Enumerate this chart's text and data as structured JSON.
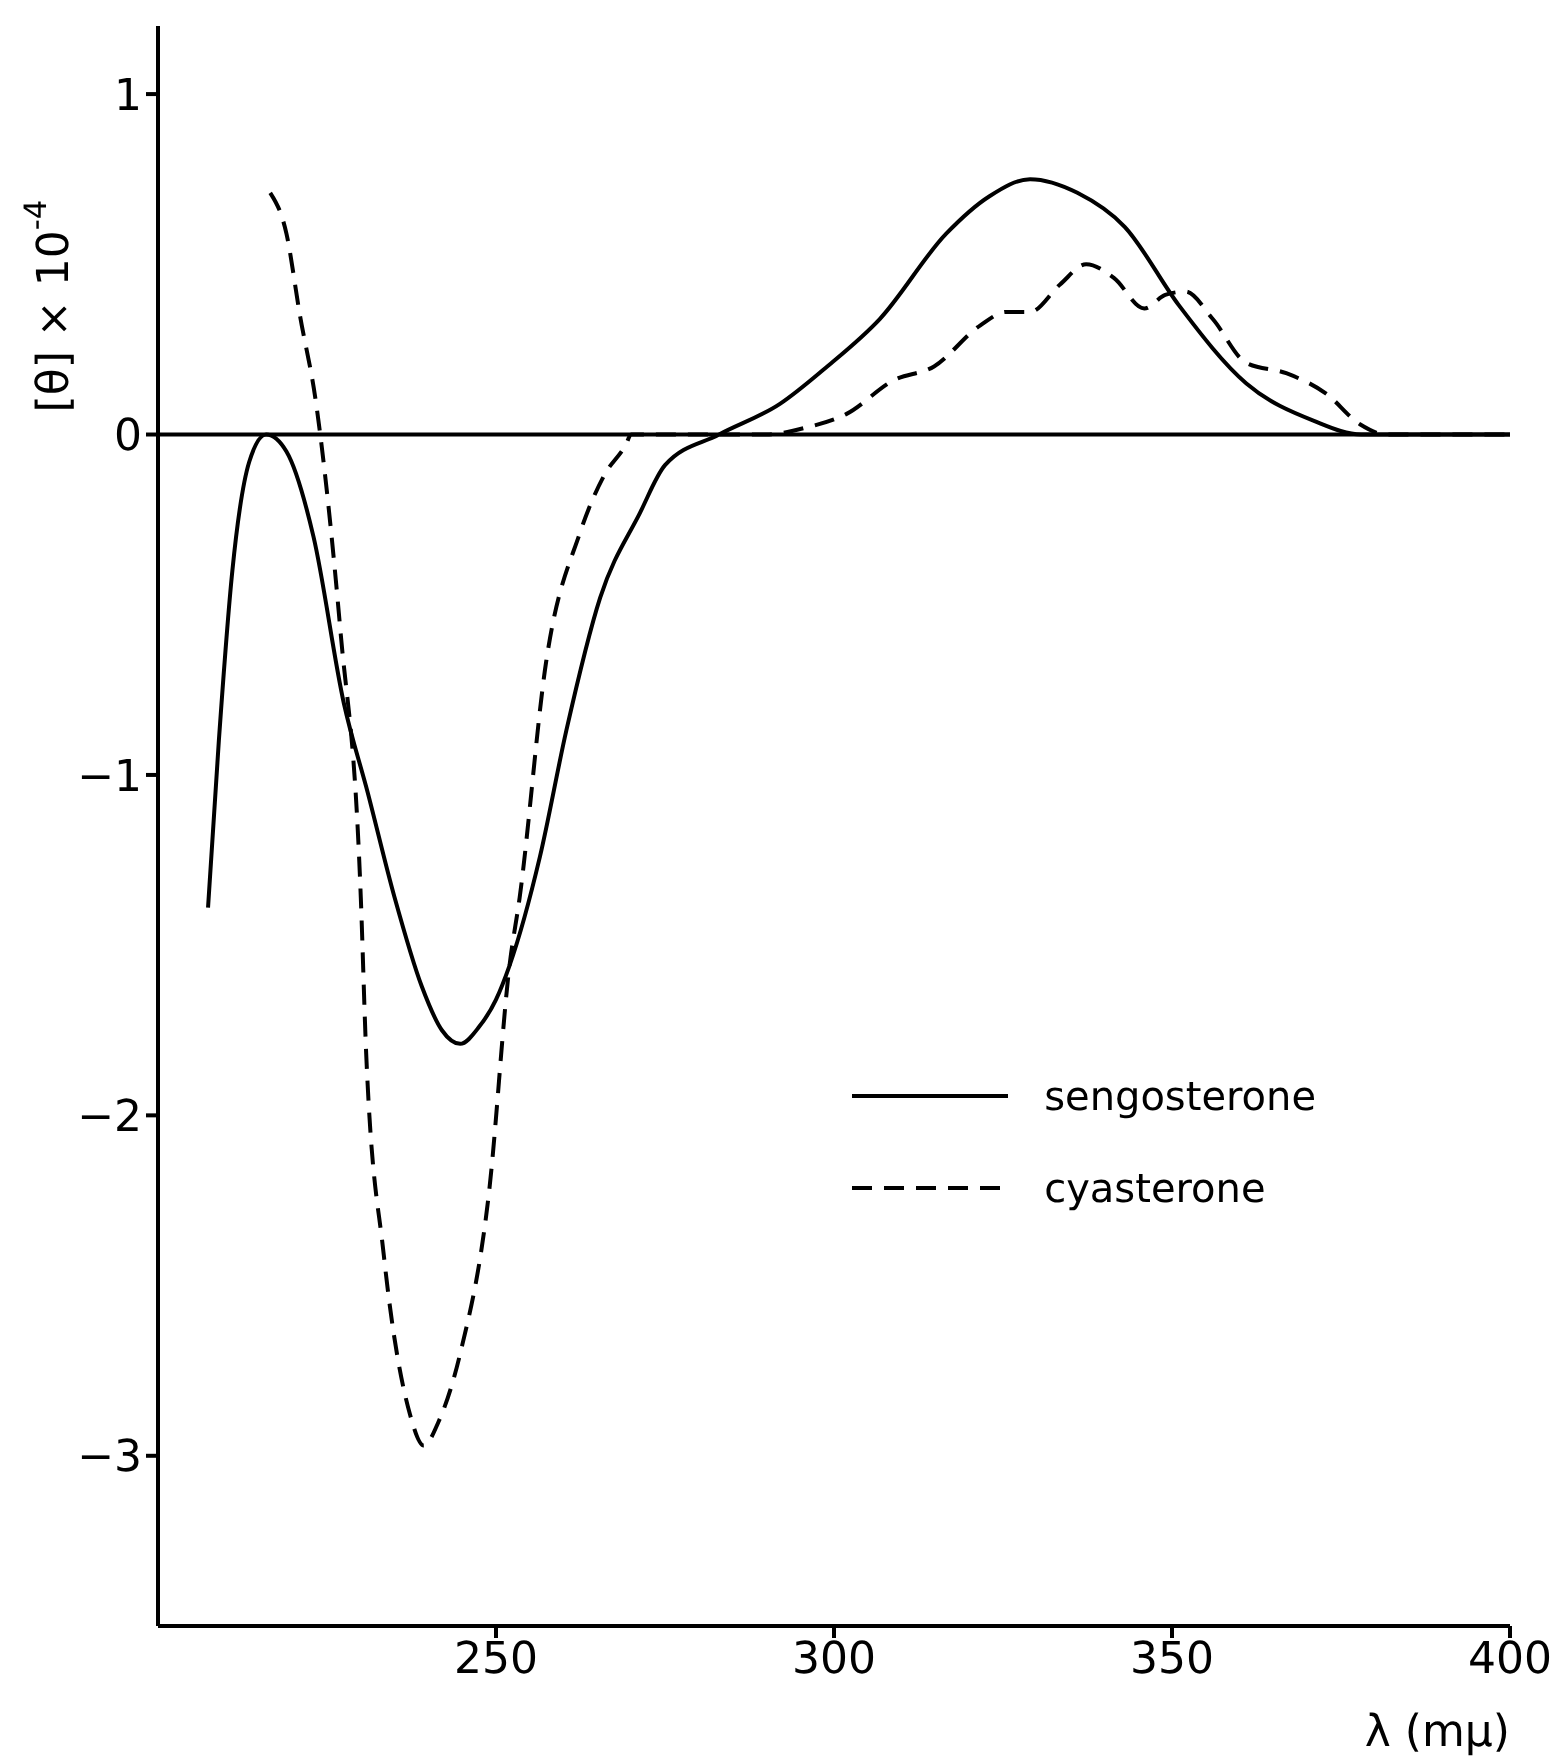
{
  "chart_data": {
    "type": "line",
    "xlabel": "λ (mμ)",
    "ylabel": "[θ] × 10$^{-4}$",
    "xlim": [
      200,
      400
    ],
    "xticks": [
      250,
      300,
      350,
      400
    ],
    "ylim": [
      -3.5,
      1.2
    ],
    "yticks": [
      -3,
      -2,
      -1,
      0,
      1
    ],
    "grid": false,
    "legend": "bottom right",
    "marker": "none",
    "ref_lines": [
      {
        "axis": "y",
        "value": 0,
        "color": "#000000"
      }
    ],
    "series": [
      {
        "name": "sengosterone",
        "color": "#000000",
        "line_style": "solid",
        "x": [
          207.4,
          209,
          211,
          213.5,
          216,
          219,
          223,
          227.5,
          231,
          235,
          239,
          242,
          244.7,
          247.5,
          250,
          252,
          256.5,
          260.4,
          265.4,
          271.3,
          275,
          283,
          292,
          299,
          306.8,
          316.6,
          323,
          329,
          336,
          343,
          351,
          361,
          371,
          378,
          400
        ],
        "values": [
          -1.39,
          -0.9,
          -0.4,
          -0.08,
          0,
          -0.05,
          -0.3,
          -0.79,
          -1.05,
          -1.36,
          -1.62,
          -1.75,
          -1.79,
          -1.74,
          -1.66,
          -1.56,
          -1.24,
          -0.87,
          -0.48,
          -0.23,
          -0.09,
          0,
          0.09,
          0.2,
          0.34,
          0.59,
          0.7,
          0.75,
          0.71,
          0.61,
          0.38,
          0.15,
          0.04,
          0,
          0
        ]
      },
      {
        "name": "cyasterone",
        "color": "#000000",
        "line_style": "dashed",
        "x": [
          216.6,
          219,
          221,
          223.4,
          224,
          227,
          230,
          230.8,
          233.4,
          237.3,
          239.3,
          241.5,
          244.7,
          249,
          252,
          253.5,
          257.4,
          262.4,
          266,
          269.2,
          270,
          290,
          295.8,
          301.8,
          308.9,
          314.8,
          321.6,
          325.5,
          329,
          333.4,
          337.3,
          341.4,
          345.9,
          349,
          352,
          356,
          361,
          366.9,
          372.8,
          377.8,
          381.7,
          400
        ],
        "values": [
          0.71,
          0.59,
          0.35,
          0.09,
          0,
          -0.58,
          -1.36,
          -1.82,
          -2.41,
          -2.88,
          -2.97,
          -2.9,
          -2.7,
          -2.22,
          -1.56,
          -1.36,
          -0.67,
          -0.29,
          -0.12,
          -0.03,
          0,
          0,
          0.02,
          0.06,
          0.16,
          0.2,
          0.32,
          0.36,
          0.36,
          0.44,
          0.5,
          0.46,
          0.37,
          0.41,
          0.42,
          0.34,
          0.21,
          0.18,
          0.12,
          0.03,
          0,
          0
        ]
      }
    ]
  }
}
